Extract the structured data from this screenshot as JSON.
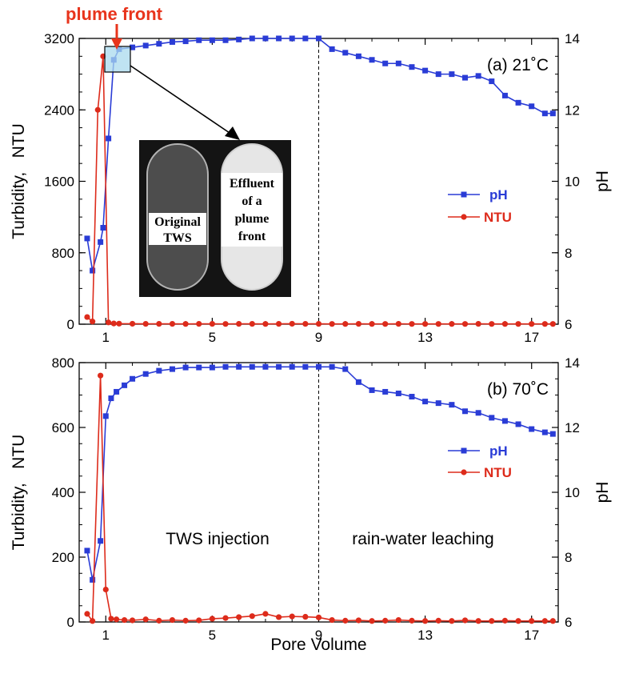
{
  "annotation": {
    "plume_front": "plume front"
  },
  "colors": {
    "ph": "#2a3cd6",
    "ntu": "#dd2b1b",
    "annotation": "#e8341c"
  },
  "chart_data": [
    {
      "type": "line",
      "panel_label": "(a) 21˚C",
      "ylabel_left": "Turbidity,   NTU",
      "ylabel_right": "pH",
      "xlim": [
        0,
        18
      ],
      "ylim_left": [
        0,
        3200
      ],
      "ylim_right": [
        6,
        14
      ],
      "left_ticks": [
        "0",
        "800",
        "1600",
        "2400",
        "3200"
      ],
      "right_ticks": [
        "6",
        "8",
        "10",
        "12",
        "14"
      ],
      "x_ticks": [
        "1",
        "5",
        "9",
        "13",
        "17"
      ],
      "vline_x": 9,
      "inset": {
        "left_label": [
          "Original",
          "TWS"
        ],
        "right_label": [
          "Effluent",
          "of a",
          "plume",
          "front"
        ]
      },
      "legend": [
        "pH",
        "NTU"
      ],
      "series": [
        {
          "name": "pH",
          "axis": "right",
          "x": [
            0.3,
            0.5,
            0.8,
            0.9,
            1.1,
            1.3,
            1.5,
            2,
            2.5,
            3,
            3.5,
            4,
            4.5,
            5,
            5.5,
            6,
            6.5,
            7,
            7.5,
            8,
            8.5,
            9,
            9.5,
            10,
            10.5,
            11,
            11.5,
            12,
            12.5,
            13,
            13.5,
            14,
            14.5,
            15,
            15.5,
            16,
            16.5,
            17,
            17.5,
            17.8
          ],
          "y": [
            8.4,
            7.5,
            8.3,
            8.7,
            11.2,
            13.4,
            13.7,
            13.75,
            13.8,
            13.85,
            13.9,
            13.92,
            13.95,
            13.95,
            13.95,
            13.97,
            14,
            14,
            14,
            14,
            14,
            14,
            13.7,
            13.6,
            13.5,
            13.4,
            13.3,
            13.3,
            13.2,
            13.1,
            13,
            13,
            12.9,
            12.95,
            12.8,
            12.4,
            12.2,
            12.1,
            11.9,
            11.9
          ]
        },
        {
          "name": "NTU",
          "axis": "left",
          "x": [
            0.3,
            0.5,
            0.7,
            0.9,
            1.1,
            1.3,
            1.5,
            2,
            2.5,
            3,
            3.5,
            4,
            4.5,
            5,
            5.5,
            6,
            6.5,
            7,
            7.5,
            8,
            8.5,
            9,
            9.5,
            10,
            10.5,
            11,
            11.5,
            12,
            12.5,
            13,
            13.5,
            14,
            14.5,
            15,
            15.5,
            16,
            16.5,
            17,
            17.5,
            17.8
          ],
          "y": [
            80,
            30,
            2400,
            3000,
            20,
            8,
            6,
            5,
            4,
            4,
            4,
            3,
            4,
            4,
            3,
            4,
            4,
            3,
            4,
            5,
            4,
            4,
            3,
            3,
            4,
            3,
            3,
            4,
            3,
            3,
            3,
            3,
            3,
            4,
            3,
            3,
            3,
            3,
            3,
            3
          ]
        }
      ]
    },
    {
      "type": "line",
      "panel_label": "(b) 70˚C",
      "ylabel_left": "Turbidity,   NTU",
      "ylabel_right": "pH",
      "xlabel": "Pore Volume",
      "xlim": [
        0,
        18
      ],
      "ylim_left": [
        0,
        800
      ],
      "ylim_right": [
        6,
        14
      ],
      "left_ticks": [
        "0",
        "200",
        "400",
        "600",
        "800"
      ],
      "right_ticks": [
        "6",
        "8",
        "10",
        "12",
        "14"
      ],
      "x_ticks": [
        "1",
        "5",
        "9",
        "13",
        "17"
      ],
      "vline_x": 9,
      "region_labels": [
        "TWS injection",
        "rain-water leaching"
      ],
      "legend": [
        "pH",
        "NTU"
      ],
      "series": [
        {
          "name": "pH",
          "axis": "right",
          "x": [
            0.3,
            0.5,
            0.8,
            1,
            1.2,
            1.4,
            1.7,
            2,
            2.5,
            3,
            3.5,
            4,
            4.5,
            5,
            5.5,
            6,
            6.5,
            7,
            7.5,
            8,
            8.5,
            9,
            9.5,
            10,
            10.5,
            11,
            11.5,
            12,
            12.5,
            13,
            13.5,
            14,
            14.5,
            15,
            15.5,
            16,
            16.5,
            17,
            17.5,
            17.8
          ],
          "y": [
            8.2,
            7.3,
            8.5,
            12.35,
            12.9,
            13.1,
            13.3,
            13.5,
            13.65,
            13.75,
            13.8,
            13.85,
            13.85,
            13.85,
            13.87,
            13.87,
            13.87,
            13.87,
            13.87,
            13.87,
            13.87,
            13.87,
            13.87,
            13.8,
            13.4,
            13.15,
            13.1,
            13.05,
            12.95,
            12.8,
            12.75,
            12.7,
            12.5,
            12.45,
            12.3,
            12.2,
            12.1,
            11.95,
            11.85,
            11.8
          ]
        },
        {
          "name": "NTU",
          "axis": "left",
          "x": [
            0.3,
            0.5,
            0.8,
            1,
            1.2,
            1.4,
            1.7,
            2,
            2.5,
            3,
            3.5,
            4,
            4.5,
            5,
            5.5,
            6,
            6.5,
            7,
            7.5,
            8,
            8.5,
            9,
            9.5,
            10,
            10.5,
            11,
            11.5,
            12,
            12.5,
            13,
            13.5,
            14,
            14.5,
            15,
            15.5,
            16,
            16.5,
            17,
            17.5,
            17.8
          ],
          "y": [
            25,
            3,
            760,
            100,
            10,
            8,
            6,
            5,
            8,
            4,
            6,
            4,
            5,
            10,
            12,
            15,
            18,
            25,
            15,
            17,
            16,
            14,
            6,
            4,
            5,
            3,
            4,
            6,
            4,
            3,
            4,
            3,
            5,
            3,
            3,
            4,
            3,
            3,
            3,
            3
          ]
        }
      ]
    }
  ]
}
